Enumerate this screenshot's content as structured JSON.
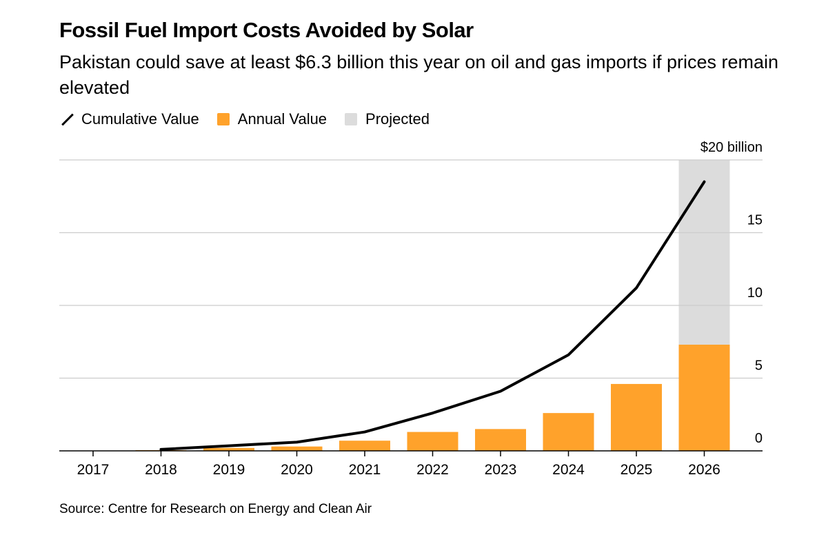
{
  "title": "Fossil Fuel Import Costs Avoided by Solar",
  "subtitle": "Pakistan could save at least $6.3 billion this year on oil and gas imports if prices remain elevated",
  "legend": {
    "cumulative": "Cumulative Value",
    "annual": "Annual Value",
    "projected": "Projected"
  },
  "source": "Source: Centre for Research on Energy and Clean Air",
  "colors": {
    "annual": "#ffa22b",
    "projected": "#dcdcdc",
    "line": "#000000",
    "grid": "#cccccc"
  },
  "chart_data": {
    "type": "bar",
    "categories": [
      "2017",
      "2018",
      "2019",
      "2020",
      "2021",
      "2022",
      "2023",
      "2024",
      "2025",
      "2026"
    ],
    "series": [
      {
        "name": "Annual Value",
        "type": "bar",
        "values": [
          0,
          0.05,
          0.2,
          0.3,
          0.7,
          1.3,
          1.5,
          2.6,
          4.6,
          7.3
        ]
      },
      {
        "name": "Cumulative Value",
        "type": "line",
        "values": [
          null,
          0.1,
          0.35,
          0.6,
          1.3,
          2.6,
          4.1,
          6.6,
          11.2,
          18.5
        ]
      }
    ],
    "projected_category": "2026",
    "ylim": [
      0,
      20
    ],
    "yticks": [
      0,
      5,
      10,
      15,
      20
    ],
    "ytick_labels": [
      "0",
      "5",
      "10",
      "15",
      "$20 billion"
    ],
    "grid": true,
    "y_axis_position": "right",
    "legend_position": "top-left"
  }
}
